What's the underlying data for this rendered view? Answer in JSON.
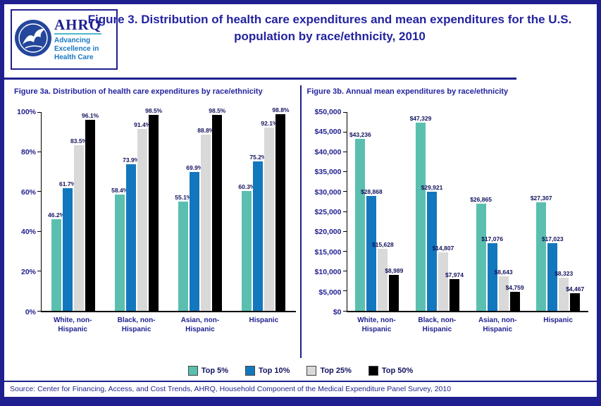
{
  "header": {
    "title": "Figure 3. Distribution of health care expenditures and mean expenditures for the U.S. population by race/ethnicity, 2010",
    "logo": {
      "ahrq": "AHRQ",
      "tagline": "Advancing Excellence in Health Care"
    }
  },
  "chart_data": [
    {
      "type": "bar",
      "title": "Figure 3a. Distribution of health care expenditures by race/ethnicity",
      "categories": [
        "White, non-Hispanic",
        "Black, non-Hispanic",
        "Asian, non-Hispanic",
        "Hispanic"
      ],
      "series": [
        {
          "name": "Top 5%",
          "values": [
            46.2,
            58.4,
            55.1,
            60.3
          ]
        },
        {
          "name": "Top 10%",
          "values": [
            61.7,
            73.9,
            69.9,
            75.2
          ]
        },
        {
          "name": "Top 25%",
          "values": [
            83.5,
            91.4,
            88.8,
            92.1
          ]
        },
        {
          "name": "Top 50%",
          "values": [
            96.1,
            98.5,
            98.5,
            98.8
          ]
        }
      ],
      "ylim": [
        0,
        100
      ],
      "ytick_step": 20,
      "value_format": "percent",
      "tick_format": "percent",
      "grid": false,
      "legend_position": "bottom-shared"
    },
    {
      "type": "bar",
      "title": "Figure 3b. Annual mean expenditures by race/ethnicity",
      "categories": [
        "White, non-Hispanic",
        "Black, non-Hispanic",
        "Asian, non-Hispanic",
        "Hispanic"
      ],
      "series": [
        {
          "name": "Top 5%",
          "values": [
            43236,
            47329,
            26865,
            27307
          ]
        },
        {
          "name": "Top 10%",
          "values": [
            28868,
            29921,
            17076,
            17023
          ]
        },
        {
          "name": "Top 25%",
          "values": [
            15628,
            14807,
            8643,
            8323
          ]
        },
        {
          "name": "Top 50%",
          "values": [
            8989,
            7974,
            4759,
            4467
          ]
        }
      ],
      "ylim": [
        0,
        50000
      ],
      "ytick_step": 5000,
      "value_format": "currency",
      "tick_format": "currency",
      "grid": false,
      "legend_position": "bottom-shared"
    }
  ],
  "legend": {
    "items": [
      {
        "label": "Top 5%",
        "color": "#5BBFAF"
      },
      {
        "label": "Top 10%",
        "color": "#1377BD"
      },
      {
        "label": "Top 25%",
        "color": "#D9D9D9"
      },
      {
        "label": "Top 50%",
        "color": "#000000"
      }
    ]
  },
  "source": "Source: Center for Financing, Access, and Cost Trends, AHRQ, Household Component of the Medical Expenditure Panel Survey, 2010",
  "colors": {
    "accent_navy": "#1F1F8F",
    "title_text": "#2323A0",
    "series": [
      "#5BBFAF",
      "#1377BD",
      "#D9D9D9",
      "#000000"
    ]
  }
}
